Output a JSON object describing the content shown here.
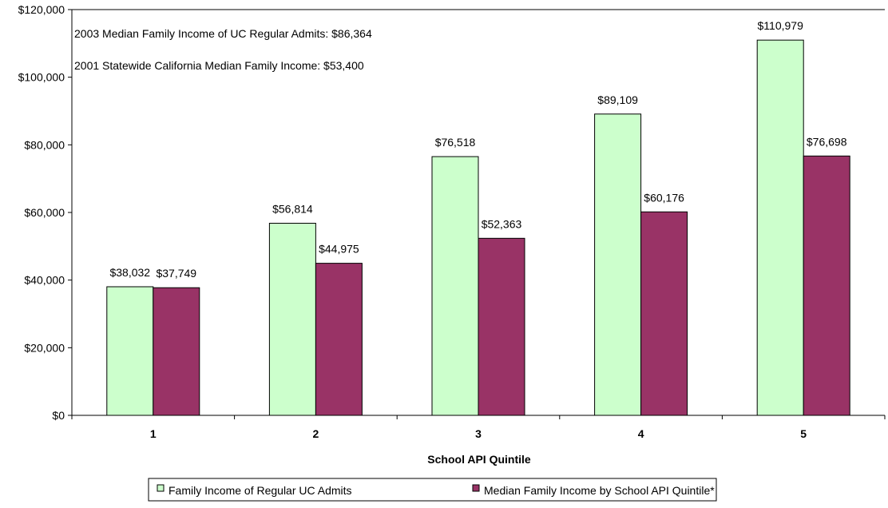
{
  "chart_data": {
    "type": "bar",
    "xlabel": "School API Quintile",
    "ylabel": "",
    "categories": [
      "1",
      "2",
      "3",
      "4",
      "5"
    ],
    "ylim": [
      0,
      120000
    ],
    "yticks": [
      0,
      20000,
      40000,
      60000,
      80000,
      100000,
      120000
    ],
    "ytick_labels": [
      "$0",
      "$20,000",
      "$40,000",
      "$60,000",
      "$80,000",
      "$100,000",
      "$120,000"
    ],
    "grid": false,
    "legend_position": "bottom",
    "series": [
      {
        "name": "Family Income of Regular UC Admits",
        "color": "#ccffcc",
        "values": [
          38032,
          56814,
          76518,
          89109,
          110979
        ],
        "labels": [
          "$38,032",
          "$56,814",
          "$76,518",
          "$89,109",
          "$110,979"
        ]
      },
      {
        "name": "Median Family Income by School API Quintile*",
        "color": "#993366",
        "values": [
          37749,
          44975,
          52363,
          60176,
          76698
        ],
        "labels": [
          "$37,749",
          "$44,975",
          "$52,363",
          "$60,176",
          "$76,698"
        ]
      }
    ],
    "annotations": [
      "2003 Median Family Income of UC Regular Admits:  $86,364",
      "2001 Statewide California Median Family Income:  $53,400"
    ]
  }
}
